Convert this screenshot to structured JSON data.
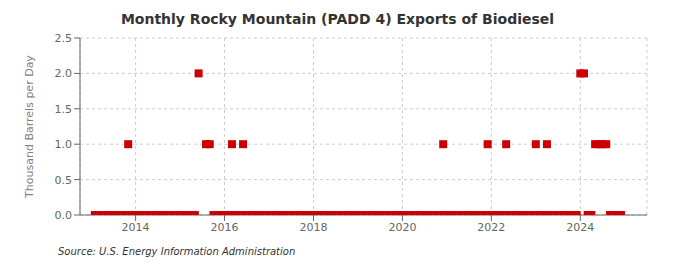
{
  "chart_data": {
    "type": "scatter",
    "title": "Monthly Rocky Mountain (PADD 4) Exports of Biodiesel",
    "ylabel": "Thousand Barrels per Day",
    "annotations": [
      "Source: U.S. Energy Information Administration"
    ],
    "color": "#cc0000",
    "marker": "square",
    "grid": true,
    "xlim": [
      2012.75,
      2025.5
    ],
    "xticks": [
      2014,
      2016,
      2018,
      2020,
      2022,
      2024
    ],
    "ylim": [
      0,
      2.5
    ],
    "yticks": [
      {
        "value": 0,
        "label": "0.0"
      },
      0.5,
      {
        "value": 1,
        "label": "1.0"
      },
      1.5,
      {
        "value": 2,
        "label": "2.0"
      },
      2.5
    ],
    "x": [
      2013.0833,
      2013.1667,
      2013.25,
      2013.3333,
      2013.4167,
      2013.5,
      2013.5833,
      2013.6667,
      2013.75,
      2013.8333,
      2013.9167,
      2014.0,
      2014.0833,
      2014.1667,
      2014.25,
      2014.3333,
      2014.4167,
      2014.5,
      2014.5833,
      2014.6667,
      2014.75,
      2014.8333,
      2014.9167,
      2015.0,
      2015.0833,
      2015.1667,
      2015.25,
      2015.3333,
      2015.4167,
      2015.5833,
      2015.6667,
      2015.75,
      2015.8333,
      2015.9167,
      2016.0,
      2016.0833,
      2016.1667,
      2016.25,
      2016.3333,
      2016.4167,
      2016.5,
      2016.5833,
      2016.6667,
      2016.75,
      2016.8333,
      2016.9167,
      2017.0,
      2017.0833,
      2017.1667,
      2017.25,
      2017.3333,
      2017.4167,
      2017.5,
      2017.5833,
      2017.6667,
      2017.75,
      2017.8333,
      2017.9167,
      2018.0,
      2018.0833,
      2018.1667,
      2018.25,
      2018.3333,
      2018.4167,
      2018.5,
      2018.5833,
      2018.6667,
      2018.75,
      2018.8333,
      2018.9167,
      2019.0,
      2019.0833,
      2019.1667,
      2019.25,
      2019.3333,
      2019.4167,
      2019.5,
      2019.5833,
      2019.6667,
      2019.75,
      2019.8333,
      2019.9167,
      2020.0,
      2020.0833,
      2020.1667,
      2020.25,
      2020.3333,
      2020.4167,
      2020.5,
      2020.5833,
      2020.6667,
      2020.75,
      2020.8333,
      2020.9167,
      2021.0,
      2021.0833,
      2021.1667,
      2021.25,
      2021.3333,
      2021.4167,
      2021.5,
      2021.5833,
      2021.6667,
      2021.75,
      2021.8333,
      2021.9167,
      2022.0,
      2022.0833,
      2022.1667,
      2022.25,
      2022.3333,
      2022.4167,
      2022.5,
      2022.5833,
      2022.6667,
      2022.75,
      2022.8333,
      2022.9167,
      2023.0,
      2023.0833,
      2023.1667,
      2023.25,
      2023.3333,
      2023.4167,
      2023.5,
      2023.5833,
      2023.6667,
      2023.75,
      2023.8333,
      2023.9167,
      2024.0,
      2024.0833,
      2024.1667,
      2024.25,
      2024.3333,
      2024.4167,
      2024.5,
      2024.5833,
      2024.6667,
      2024.75,
      2024.8333,
      2024.9167
    ],
    "values": [
      0,
      0,
      0,
      0,
      0,
      0,
      0,
      0,
      0,
      1,
      0,
      0,
      0,
      0,
      0,
      0,
      0,
      0,
      0,
      0,
      0,
      0,
      0,
      0,
      0,
      0,
      0,
      0,
      2,
      1,
      1,
      0,
      0,
      0,
      0,
      0,
      1,
      0,
      0,
      1,
      0,
      0,
      0,
      0,
      0,
      0,
      0,
      0,
      0,
      0,
      0,
      0,
      0,
      0,
      0,
      0,
      0,
      0,
      0,
      0,
      0,
      0,
      0,
      0,
      0,
      0,
      0,
      0,
      0,
      0,
      0,
      0,
      0,
      0,
      0,
      0,
      0,
      0,
      0,
      0,
      0,
      0,
      0,
      0,
      0,
      0,
      0,
      0,
      0,
      0,
      0,
      0,
      0,
      1,
      0,
      0,
      0,
      0,
      0,
      0,
      0,
      0,
      0,
      0,
      0,
      1,
      0,
      0,
      0,
      0,
      1,
      0,
      0,
      0,
      0,
      0,
      0,
      0,
      1,
      0,
      0,
      1,
      0,
      0,
      0,
      0,
      0,
      0,
      0,
      0,
      2,
      2,
      0,
      0,
      1,
      1,
      1,
      1,
      0,
      0,
      0,
      0
    ]
  }
}
